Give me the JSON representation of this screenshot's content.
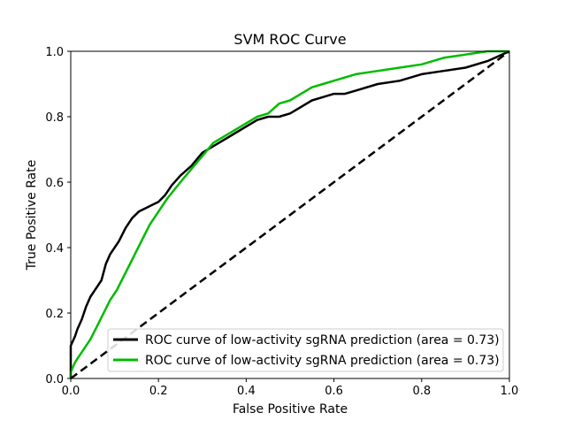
{
  "chart_data": {
    "type": "line",
    "title": "SVM ROC Curve",
    "xlabel": "False Positive Rate",
    "ylabel": "True Positive Rate",
    "xlim": [
      0,
      1
    ],
    "ylim": [
      0,
      1
    ],
    "xticks": [
      "0.0",
      "0.2",
      "0.4",
      "0.6",
      "0.8",
      "1.0"
    ],
    "yticks": [
      "0.0",
      "0.2",
      "0.4",
      "0.6",
      "0.8",
      "1.0"
    ],
    "grid": false,
    "legend_position": "lower-right",
    "series": [
      {
        "name": "ROC curve of low-activity sgRNA prediction (area = 0.73)",
        "color": "#000000",
        "style": "solid",
        "x": [
          0.0,
          0.0,
          0.01,
          0.015,
          0.025,
          0.035,
          0.045,
          0.055,
          0.07,
          0.08,
          0.09,
          0.1,
          0.11,
          0.125,
          0.14,
          0.155,
          0.17,
          0.185,
          0.2,
          0.215,
          0.23,
          0.25,
          0.275,
          0.3,
          0.325,
          0.35,
          0.375,
          0.4,
          0.425,
          0.45,
          0.475,
          0.5,
          0.525,
          0.55,
          0.575,
          0.6,
          0.625,
          0.65,
          0.7,
          0.75,
          0.8,
          0.85,
          0.9,
          0.95,
          1.0
        ],
        "y": [
          0.0,
          0.1,
          0.13,
          0.15,
          0.18,
          0.22,
          0.25,
          0.27,
          0.3,
          0.35,
          0.38,
          0.4,
          0.42,
          0.46,
          0.49,
          0.51,
          0.52,
          0.53,
          0.54,
          0.56,
          0.59,
          0.62,
          0.65,
          0.69,
          0.71,
          0.73,
          0.75,
          0.77,
          0.79,
          0.8,
          0.8,
          0.81,
          0.83,
          0.85,
          0.86,
          0.87,
          0.87,
          0.88,
          0.9,
          0.91,
          0.93,
          0.94,
          0.95,
          0.97,
          1.0
        ]
      },
      {
        "name": "ROC curve of low-activity sgRNA prediction (area = 0.73)",
        "color": "#00bb00",
        "style": "solid",
        "x": [
          0.0,
          0.0,
          0.01,
          0.02,
          0.03,
          0.045,
          0.06,
          0.075,
          0.09,
          0.105,
          0.12,
          0.135,
          0.15,
          0.165,
          0.18,
          0.2,
          0.22,
          0.25,
          0.275,
          0.3,
          0.325,
          0.35,
          0.375,
          0.4,
          0.425,
          0.45,
          0.475,
          0.5,
          0.525,
          0.55,
          0.575,
          0.6,
          0.625,
          0.65,
          0.7,
          0.75,
          0.8,
          0.85,
          0.9,
          0.95,
          1.0
        ],
        "y": [
          0.0,
          0.02,
          0.05,
          0.07,
          0.09,
          0.12,
          0.16,
          0.2,
          0.24,
          0.27,
          0.31,
          0.35,
          0.39,
          0.43,
          0.47,
          0.51,
          0.55,
          0.6,
          0.64,
          0.68,
          0.72,
          0.74,
          0.76,
          0.78,
          0.8,
          0.81,
          0.84,
          0.85,
          0.87,
          0.89,
          0.9,
          0.91,
          0.92,
          0.93,
          0.94,
          0.95,
          0.96,
          0.98,
          0.99,
          1.0,
          1.0
        ]
      },
      {
        "name": "",
        "color": "#000000",
        "style": "dashed",
        "x": [
          0,
          1
        ],
        "y": [
          0,
          1
        ]
      }
    ]
  }
}
